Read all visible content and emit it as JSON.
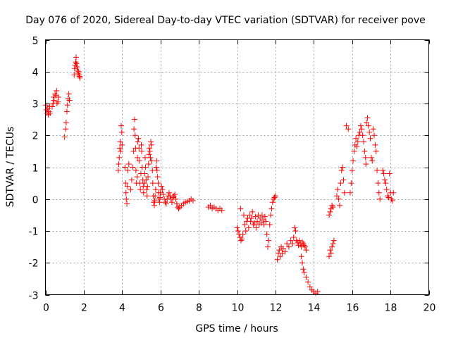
{
  "chart_data": {
    "type": "scatter",
    "title": "Day 076 of 2020, Sidereal Day-to-day VTEC variation (SDTVAR) for receiver pove",
    "xlabel": "GPS time / hours",
    "ylabel": "SDTVAR / TECUs",
    "xlim": [
      0,
      20
    ],
    "ylim": [
      -3,
      5
    ],
    "xticks": [
      0,
      2,
      4,
      6,
      8,
      10,
      12,
      14,
      16,
      18,
      20
    ],
    "yticks": [
      -3,
      -2,
      -1,
      0,
      1,
      2,
      3,
      4,
      5
    ],
    "xtick_labels": [
      "0",
      "2",
      "4",
      "6",
      "8",
      "10",
      "12",
      "14",
      "16",
      "18",
      "20"
    ],
    "ytick_labels": [
      "-3",
      "-2",
      "-1",
      "0",
      "1",
      "2",
      "3",
      "4",
      "5"
    ],
    "grid": true,
    "marker": "+",
    "color": "#ff0000",
    "series": [
      {
        "name": "SDTVAR",
        "points": [
          [
            0.02,
            2.95
          ],
          [
            0.05,
            2.8
          ],
          [
            0.08,
            2.7
          ],
          [
            0.12,
            2.85
          ],
          [
            0.15,
            2.65
          ],
          [
            0.18,
            2.75
          ],
          [
            0.22,
            2.9
          ],
          [
            0.25,
            2.7
          ],
          [
            0.35,
            2.9
          ],
          [
            0.4,
            3.0
          ],
          [
            0.42,
            3.2
          ],
          [
            0.45,
            3.1
          ],
          [
            0.5,
            3.3
          ],
          [
            0.55,
            3.25
          ],
          [
            0.58,
            3.4
          ],
          [
            0.6,
            3.0
          ],
          [
            0.65,
            3.05
          ],
          [
            0.68,
            3.2
          ],
          [
            1.0,
            1.95
          ],
          [
            1.05,
            2.2
          ],
          [
            1.08,
            2.4
          ],
          [
            1.12,
            2.75
          ],
          [
            1.15,
            2.95
          ],
          [
            1.18,
            3.15
          ],
          [
            1.22,
            3.3
          ],
          [
            1.25,
            3.1
          ],
          [
            1.5,
            3.9
          ],
          [
            1.52,
            4.1
          ],
          [
            1.55,
            4.2
          ],
          [
            1.58,
            4.3
          ],
          [
            1.6,
            4.45
          ],
          [
            1.62,
            4.25
          ],
          [
            1.65,
            4.15
          ],
          [
            1.68,
            4.05
          ],
          [
            1.7,
            3.95
          ],
          [
            1.72,
            4.0
          ],
          [
            1.75,
            3.9
          ],
          [
            1.78,
            3.85
          ],
          [
            1.8,
            3.8
          ],
          [
            3.8,
            0.9
          ],
          [
            3.82,
            1.1
          ],
          [
            3.85,
            1.3
          ],
          [
            3.88,
            1.6
          ],
          [
            3.9,
            1.8
          ],
          [
            3.92,
            1.5
          ],
          [
            3.95,
            2.3
          ],
          [
            3.98,
            2.1
          ],
          [
            4.0,
            1.7
          ],
          [
            4.15,
            1.0
          ],
          [
            4.18,
            0.5
          ],
          [
            4.2,
            0.2
          ],
          [
            4.22,
            0.0
          ],
          [
            4.25,
            -0.15
          ],
          [
            4.28,
            0.4
          ],
          [
            4.3,
            0.9
          ],
          [
            4.35,
            1.1
          ],
          [
            4.45,
            0.3
          ],
          [
            4.5,
            0.6
          ],
          [
            4.55,
            1.0
          ],
          [
            4.6,
            1.5
          ],
          [
            4.62,
            2.2
          ],
          [
            4.65,
            2.5
          ],
          [
            4.68,
            2.0
          ],
          [
            4.7,
            1.6
          ],
          [
            4.72,
            0.9
          ],
          [
            4.75,
            0.5
          ],
          [
            4.78,
            0.7
          ],
          [
            4.8,
            1.3
          ],
          [
            4.82,
            1.8
          ],
          [
            4.85,
            1.9
          ],
          [
            4.88,
            1.6
          ],
          [
            4.9,
            1.2
          ],
          [
            4.92,
            0.5
          ],
          [
            4.95,
            0.3
          ],
          [
            4.98,
            0.8
          ],
          [
            5.0,
            1.7
          ],
          [
            5.02,
            1.5
          ],
          [
            5.05,
            1.0
          ],
          [
            5.08,
            0.6
          ],
          [
            5.1,
            0.4
          ],
          [
            5.12,
            0.2
          ],
          [
            5.15,
            0.5
          ],
          [
            5.18,
            0.8
          ],
          [
            5.2,
            1.3
          ],
          [
            5.22,
            1.0
          ],
          [
            5.25,
            0.6
          ],
          [
            5.28,
            0.3
          ],
          [
            5.3,
            0.1
          ],
          [
            5.32,
            0.4
          ],
          [
            5.35,
            0.7
          ],
          [
            5.38,
            1.1
          ],
          [
            5.4,
            1.4
          ],
          [
            5.42,
            1.6
          ],
          [
            5.45,
            1.5
          ],
          [
            5.48,
            1.3
          ],
          [
            5.5,
            1.8
          ],
          [
            5.52,
            1.7
          ],
          [
            5.55,
            1.2
          ],
          [
            5.58,
            0.9
          ],
          [
            5.6,
            0.5
          ],
          [
            5.62,
            0.1
          ],
          [
            5.65,
            -0.1
          ],
          [
            5.68,
            -0.2
          ],
          [
            5.7,
            -0.05
          ],
          [
            5.72,
            0.1
          ],
          [
            5.75,
            0.3
          ],
          [
            5.78,
            1.0
          ],
          [
            5.8,
            1.2
          ],
          [
            5.82,
            0.9
          ],
          [
            5.85,
            0.7
          ],
          [
            5.88,
            0.5
          ],
          [
            5.9,
            0.2
          ],
          [
            5.92,
            0.0
          ],
          [
            5.95,
            -0.1
          ],
          [
            5.98,
            0.05
          ],
          [
            6.0,
            0.2
          ],
          [
            6.05,
            0.4
          ],
          [
            6.1,
            0.3
          ],
          [
            6.15,
            0.15
          ],
          [
            6.2,
            0.0
          ],
          [
            6.25,
            -0.1
          ],
          [
            6.3,
            -0.15
          ],
          [
            6.35,
            0.0
          ],
          [
            6.4,
            0.1
          ],
          [
            6.45,
            0.2
          ],
          [
            6.5,
            0.1
          ],
          [
            6.55,
            0.0
          ],
          [
            6.6,
            -0.1
          ],
          [
            6.65,
            0.05
          ],
          [
            6.7,
            0.1
          ],
          [
            6.75,
            0.15
          ],
          [
            6.8,
            0.0
          ],
          [
            6.85,
            -0.15
          ],
          [
            6.9,
            -0.25
          ],
          [
            6.95,
            -0.3
          ],
          [
            7.0,
            -0.25
          ],
          [
            7.1,
            -0.2
          ],
          [
            7.2,
            -0.15
          ],
          [
            7.3,
            -0.1
          ],
          [
            7.4,
            -0.08
          ],
          [
            7.5,
            -0.05
          ],
          [
            7.6,
            0.0
          ],
          [
            7.7,
            -0.05
          ],
          [
            8.5,
            -0.25
          ],
          [
            8.6,
            -0.2
          ],
          [
            8.7,
            -0.3
          ],
          [
            8.8,
            -0.25
          ],
          [
            8.9,
            -0.3
          ],
          [
            9.0,
            -0.35
          ],
          [
            9.1,
            -0.3
          ],
          [
            9.2,
            -0.35
          ],
          [
            10.0,
            -0.9
          ],
          [
            10.05,
            -1.0
          ],
          [
            10.1,
            -1.1
          ],
          [
            10.15,
            -1.2
          ],
          [
            10.18,
            -0.3
          ],
          [
            10.2,
            -1.3
          ],
          [
            10.25,
            -1.25
          ],
          [
            10.3,
            -1.1
          ],
          [
            10.35,
            -0.5
          ],
          [
            10.4,
            -0.8
          ],
          [
            10.45,
            -1.0
          ],
          [
            10.5,
            -0.7
          ],
          [
            10.55,
            -0.6
          ],
          [
            10.6,
            -0.9
          ],
          [
            10.65,
            -0.5
          ],
          [
            10.7,
            -0.7
          ],
          [
            10.75,
            -0.6
          ],
          [
            10.8,
            -0.4
          ],
          [
            10.85,
            -0.8
          ],
          [
            10.9,
            -0.75
          ],
          [
            10.95,
            -0.55
          ],
          [
            11.0,
            -0.9
          ],
          [
            11.05,
            -0.7
          ],
          [
            11.1,
            -0.5
          ],
          [
            11.15,
            -0.8
          ],
          [
            11.2,
            -0.6
          ],
          [
            11.25,
            -0.75
          ],
          [
            11.3,
            -0.5
          ],
          [
            11.35,
            -0.65
          ],
          [
            11.4,
            -0.8
          ],
          [
            11.45,
            -0.55
          ],
          [
            11.5,
            -0.7
          ],
          [
            11.55,
            -1.1
          ],
          [
            11.6,
            -1.5
          ],
          [
            11.65,
            -1.3
          ],
          [
            11.7,
            -0.8
          ],
          [
            11.75,
            -0.5
          ],
          [
            11.8,
            -0.3
          ],
          [
            11.85,
            -0.1
          ],
          [
            11.9,
            0.0
          ],
          [
            11.95,
            0.05
          ],
          [
            12.0,
            0.1
          ],
          [
            12.1,
            -1.9
          ],
          [
            12.15,
            -1.7
          ],
          [
            12.2,
            -1.6
          ],
          [
            12.25,
            -1.8
          ],
          [
            12.3,
            -1.5
          ],
          [
            12.35,
            -1.7
          ],
          [
            12.4,
            -1.55
          ],
          [
            12.5,
            -1.65
          ],
          [
            12.6,
            -1.4
          ],
          [
            12.7,
            -1.5
          ],
          [
            12.8,
            -1.3
          ],
          [
            12.9,
            -1.4
          ],
          [
            12.95,
            -1.2
          ],
          [
            13.0,
            -0.9
          ],
          [
            13.05,
            -1.0
          ],
          [
            13.1,
            -1.3
          ],
          [
            13.15,
            -1.35
          ],
          [
            13.2,
            -1.45
          ],
          [
            13.25,
            -1.3
          ],
          [
            13.3,
            -1.4
          ],
          [
            13.35,
            -1.5
          ],
          [
            13.4,
            -1.35
          ],
          [
            13.45,
            -1.4
          ],
          [
            13.5,
            -1.45
          ],
          [
            13.55,
            -1.5
          ],
          [
            13.6,
            -1.6
          ],
          [
            13.35,
            -1.8
          ],
          [
            13.4,
            -2.0
          ],
          [
            13.45,
            -2.2
          ],
          [
            13.5,
            -2.3
          ],
          [
            13.6,
            -2.45
          ],
          [
            13.7,
            -2.6
          ],
          [
            13.8,
            -2.75
          ],
          [
            13.9,
            -2.85
          ],
          [
            14.0,
            -2.9
          ],
          [
            14.1,
            -2.95
          ],
          [
            14.2,
            -2.9
          ],
          [
            14.8,
            -1.8
          ],
          [
            14.85,
            -1.6
          ],
          [
            14.9,
            -1.7
          ],
          [
            14.95,
            -1.5
          ],
          [
            15.0,
            -1.4
          ],
          [
            15.05,
            -1.3
          ],
          [
            14.8,
            -0.5
          ],
          [
            14.85,
            -0.4
          ],
          [
            14.9,
            -0.3
          ],
          [
            14.95,
            -0.2
          ],
          [
            15.0,
            -0.25
          ],
          [
            15.2,
            0.1
          ],
          [
            15.25,
            0.3
          ],
          [
            15.3,
            0.0
          ],
          [
            15.35,
            -0.2
          ],
          [
            15.4,
            0.5
          ],
          [
            15.45,
            0.9
          ],
          [
            15.5,
            1.0
          ],
          [
            15.55,
            0.6
          ],
          [
            15.6,
            0.2
          ],
          [
            15.7,
            2.3
          ],
          [
            15.8,
            2.2
          ],
          [
            15.9,
            0.2
          ],
          [
            15.95,
            0.5
          ],
          [
            16.0,
            0.9
          ],
          [
            16.05,
            1.2
          ],
          [
            16.1,
            1.5
          ],
          [
            16.15,
            1.7
          ],
          [
            16.2,
            1.9
          ],
          [
            16.25,
            1.65
          ],
          [
            16.3,
            1.8
          ],
          [
            16.35,
            2.0
          ],
          [
            16.4,
            2.1
          ],
          [
            16.45,
            2.3
          ],
          [
            16.5,
            2.2
          ],
          [
            16.55,
            2.0
          ],
          [
            16.6,
            1.8
          ],
          [
            16.65,
            1.5
          ],
          [
            16.7,
            1.3
          ],
          [
            16.72,
            1.1
          ],
          [
            16.75,
            2.4
          ],
          [
            16.8,
            2.55
          ],
          [
            16.85,
            2.3
          ],
          [
            16.9,
            2.1
          ],
          [
            16.95,
            1.9
          ],
          [
            17.0,
            1.3
          ],
          [
            17.05,
            1.2
          ],
          [
            17.1,
            2.2
          ],
          [
            17.15,
            2.0
          ],
          [
            17.2,
            1.7
          ],
          [
            17.25,
            1.5
          ],
          [
            17.3,
            0.9
          ],
          [
            17.35,
            0.5
          ],
          [
            17.4,
            0.2
          ],
          [
            17.45,
            0.0
          ],
          [
            17.6,
            0.9
          ],
          [
            17.65,
            0.8
          ],
          [
            17.7,
            0.6
          ],
          [
            17.75,
            0.5
          ],
          [
            17.8,
            0.3
          ],
          [
            17.85,
            0.1
          ],
          [
            17.9,
            0.05
          ],
          [
            17.95,
            0.8
          ],
          [
            18.0,
            0.2
          ],
          [
            18.05,
            0.0
          ],
          [
            18.1,
            -0.05
          ],
          [
            18.15,
            0.2
          ]
        ]
      }
    ]
  }
}
